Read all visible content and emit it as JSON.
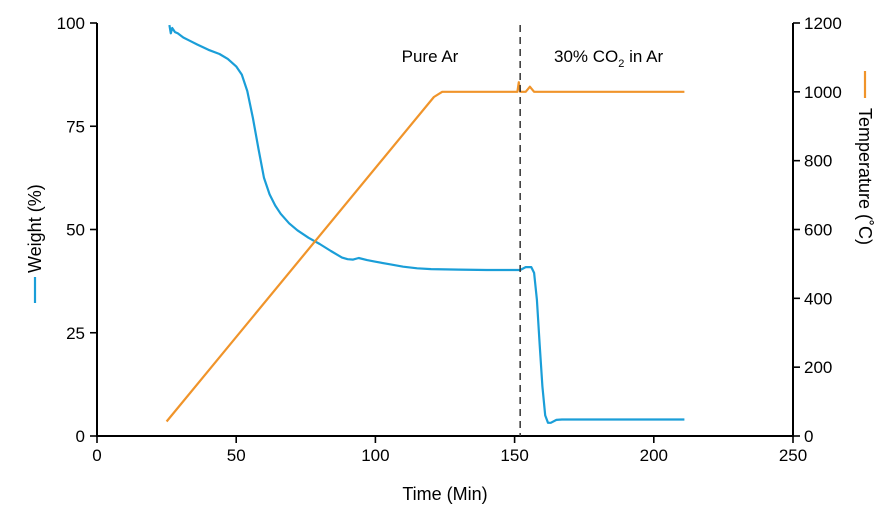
{
  "chart_data": {
    "type": "line",
    "xlabel": "Time (Min)",
    "ylabel_left": "Weight (%)",
    "ylabel_right": "Temperature (˚C)",
    "xlim": [
      0,
      250
    ],
    "ylim_left": [
      0,
      100
    ],
    "ylim_right": [
      0,
      1200
    ],
    "x_ticks": [
      0,
      50,
      100,
      150,
      200,
      250
    ],
    "y_left_ticks": [
      0,
      25,
      50,
      75,
      100
    ],
    "y_right_ticks": [
      0,
      200,
      400,
      600,
      800,
      1000,
      1200
    ],
    "grid": false,
    "colors": {
      "weight": "#1a9ed8",
      "temperature": "#f0942a",
      "divider": "#333333"
    },
    "annotations": {
      "left_region": "Pure Ar",
      "right_prefix": "30% CO",
      "right_sub": "2",
      "right_suffix": " in Ar",
      "divider_x": 152
    },
    "series": [
      {
        "axis": "left",
        "color": "#1a9ed8",
        "x": [
          26,
          26.5,
          27,
          28,
          29,
          31,
          33,
          36,
          40,
          44,
          47,
          50,
          52,
          54,
          56,
          58,
          60,
          62,
          64,
          66,
          69,
          72,
          76,
          80,
          84,
          88,
          90,
          92,
          94,
          97,
          100,
          105,
          110,
          115,
          120,
          130,
          140,
          150,
          152,
          154,
          156,
          157,
          158,
          159,
          160,
          161,
          162,
          163,
          165,
          167,
          170,
          180,
          190,
          200,
          211
        ],
        "y": [
          99.5,
          97.5,
          98.8,
          97.8,
          97.5,
          96.5,
          95.8,
          94.8,
          93.5,
          92.5,
          91.3,
          89.5,
          87.5,
          83.5,
          77,
          69.5,
          62.5,
          58.5,
          55.8,
          53.8,
          51.5,
          49.8,
          48,
          46.5,
          44.8,
          43.2,
          42.8,
          42.7,
          43.1,
          42.6,
          42.2,
          41.6,
          41,
          40.6,
          40.4,
          40.3,
          40.2,
          40.2,
          40.2,
          40.9,
          40.9,
          39.5,
          33,
          22,
          12,
          5,
          3.2,
          3.2,
          3.9,
          4,
          4,
          4,
          4,
          4,
          4
        ]
      },
      {
        "axis": "right",
        "color": "#f0942a",
        "x": [
          25,
          121,
          124,
          151,
          151.5,
          152,
          153,
          154,
          155,
          155.5,
          156,
          157,
          158,
          160,
          211
        ],
        "y": [
          42,
          985,
          1000,
          1000,
          1028,
          1000,
          1000,
          1000,
          1010,
          1015,
          1010,
          1000,
          1000,
          1000,
          1000
        ]
      }
    ]
  }
}
